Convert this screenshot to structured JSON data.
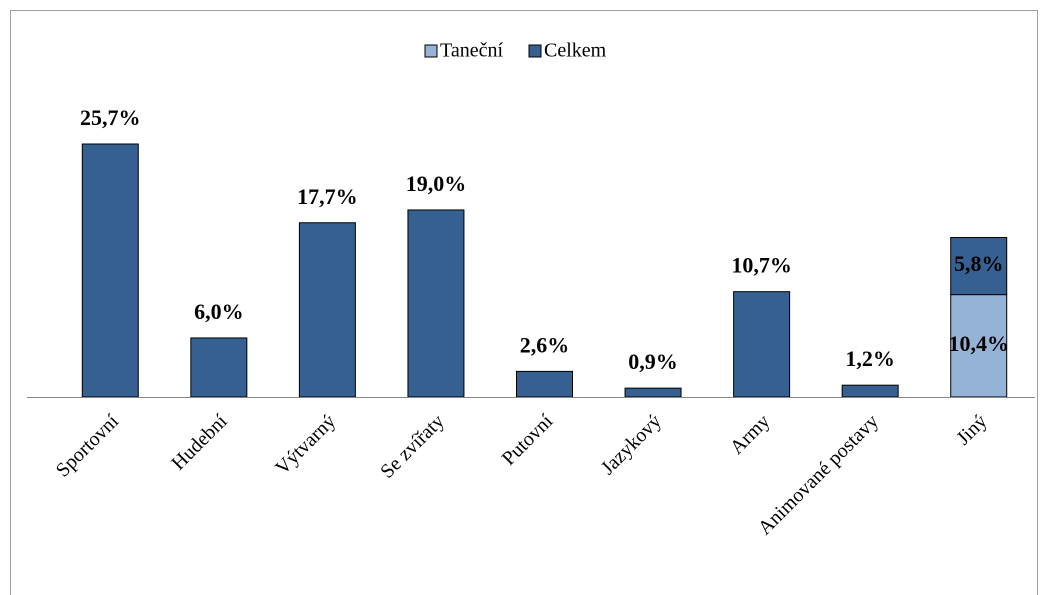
{
  "chart_data": {
    "type": "bar",
    "stacked": true,
    "legend": "top",
    "categories": [
      "Sportovní",
      "Hudební",
      "Výtvarný",
      "Se zvířaty",
      "Putovní",
      "Jazykový",
      "Army",
      "Animované postavy",
      "Jiný"
    ],
    "series": [
      {
        "name": "Taneční",
        "color": "#95b3d7",
        "values": [
          null,
          null,
          null,
          null,
          null,
          null,
          null,
          null,
          10.4
        ],
        "value_labels": [
          null,
          null,
          null,
          null,
          null,
          null,
          null,
          null,
          "10,4%"
        ]
      },
      {
        "name": "Celkem",
        "color": "#376092",
        "values": [
          25.7,
          6.0,
          17.7,
          19.0,
          2.6,
          0.9,
          10.7,
          1.2,
          5.8
        ],
        "value_labels": [
          "25,7%",
          "6,0%",
          "17,7%",
          "19,0%",
          "2,6%",
          "0,9%",
          "10,7%",
          "1,2%",
          "5,8%"
        ]
      }
    ]
  }
}
